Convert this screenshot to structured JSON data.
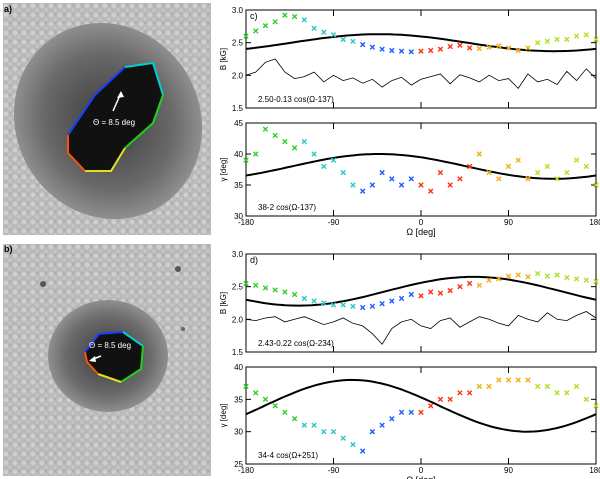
{
  "panels": {
    "a": {
      "label": "a)",
      "theta_label": "Θ = 8.5 deg"
    },
    "b": {
      "label": "b)",
      "theta_label": "Θ = 8.5 deg"
    }
  },
  "chart_data": [
    {
      "type": "scatter",
      "panel_label": "c)",
      "title": "",
      "xlabel": "Ω [deg]",
      "ylabel": "B [kG]",
      "x_ticks": [
        "-180",
        "-90",
        "0",
        "90",
        "180"
      ],
      "xlim": [
        -180,
        180
      ],
      "ylim": [
        1.5,
        3.0
      ],
      "y_ticks": [
        "1.5",
        "2.0",
        "2.5",
        "3.0"
      ],
      "fit_label": "2.50-0.13 cos(Ω-137)",
      "fit": {
        "offset": 2.5,
        "amplitude": 0.13,
        "phase": 137
      },
      "series": [
        {
          "name": "B",
          "x": [
            -180,
            -170,
            -160,
            -150,
            -140,
            -130,
            -120,
            -110,
            -100,
            -90,
            -80,
            -70,
            -60,
            -50,
            -40,
            -30,
            -20,
            -10,
            0,
            10,
            20,
            30,
            40,
            50,
            60,
            70,
            80,
            90,
            100,
            110,
            120,
            130,
            140,
            150,
            160,
            170,
            180
          ],
          "values": [
            2.6,
            2.68,
            2.76,
            2.82,
            2.92,
            2.9,
            2.85,
            2.72,
            2.66,
            2.62,
            2.55,
            2.52,
            2.47,
            2.43,
            2.4,
            2.38,
            2.37,
            2.36,
            2.37,
            2.38,
            2.4,
            2.44,
            2.46,
            2.42,
            2.41,
            2.43,
            2.45,
            2.42,
            2.38,
            2.42,
            2.5,
            2.52,
            2.55,
            2.55,
            2.6,
            2.62,
            2.55
          ]
        },
        {
          "name": "residual",
          "x": [
            -180,
            -170,
            -160,
            -150,
            -140,
            -130,
            -120,
            -110,
            -100,
            -90,
            -80,
            -70,
            -60,
            -50,
            -40,
            -30,
            -20,
            -10,
            0,
            10,
            20,
            30,
            40,
            50,
            60,
            70,
            80,
            90,
            100,
            110,
            120,
            130,
            140,
            150,
            160,
            170,
            180
          ],
          "values": [
            2.0,
            2.05,
            2.2,
            2.25,
            2.05,
            1.95,
            1.98,
            2.05,
            1.9,
            2.0,
            1.92,
            1.96,
            1.88,
            1.94,
            1.82,
            1.92,
            1.97,
            1.85,
            1.94,
            1.98,
            2.02,
            1.87,
            2.01,
            1.96,
            1.9,
            2.0,
            1.92,
            1.95,
            1.8,
            2.02,
            1.9,
            1.94,
            1.86,
            2.06,
            1.92,
            2.1,
            1.95
          ]
        }
      ]
    },
    {
      "type": "scatter",
      "panel_label": "",
      "xlabel": "Ω [deg]",
      "ylabel": "γ [deg]",
      "x_ticks": [
        "-180",
        "-90",
        "0",
        "90",
        "180"
      ],
      "xlim": [
        -180,
        180
      ],
      "ylim": [
        30,
        45
      ],
      "y_ticks": [
        "30",
        "35",
        "40",
        "45"
      ],
      "fit_label": "38-2 cos(Ω-137)",
      "fit": {
        "offset": 38,
        "amplitude": 2,
        "phase": 137
      },
      "series": [
        {
          "name": "gamma",
          "x": [
            -180,
            -170,
            -160,
            -150,
            -140,
            -130,
            -120,
            -110,
            -100,
            -90,
            -80,
            -70,
            -60,
            -50,
            -40,
            -30,
            -20,
            -10,
            0,
            10,
            20,
            30,
            40,
            50,
            60,
            70,
            80,
            90,
            100,
            110,
            120,
            130,
            140,
            150,
            160,
            170,
            180
          ],
          "values": [
            39,
            40,
            44,
            43,
            42,
            41,
            42,
            40,
            38,
            39,
            37,
            35,
            34,
            35,
            37,
            36,
            35,
            36,
            35,
            34,
            37,
            35,
            36,
            38,
            40,
            37,
            36,
            38,
            39,
            36,
            37,
            38,
            36,
            37,
            39,
            38,
            35
          ]
        }
      ]
    },
    {
      "type": "scatter",
      "panel_label": "d)",
      "xlabel": "Ω [deg]",
      "ylabel": "B [kG]",
      "x_ticks": [
        "-180",
        "-90",
        "0",
        "90",
        "180"
      ],
      "xlim": [
        -180,
        180
      ],
      "ylim": [
        1.5,
        3.0
      ],
      "y_ticks": [
        "1.5",
        "2.0",
        "2.5",
        "3.0"
      ],
      "fit_label": "2.43-0.22 cos(Ω-234)",
      "fit": {
        "offset": 2.43,
        "amplitude": 0.22,
        "phase": 234
      },
      "series": [
        {
          "name": "B",
          "x": [
            -180,
            -170,
            -160,
            -150,
            -140,
            -130,
            -120,
            -110,
            -100,
            -90,
            -80,
            -70,
            -60,
            -50,
            -40,
            -30,
            -20,
            -10,
            0,
            10,
            20,
            30,
            40,
            50,
            60,
            70,
            80,
            90,
            100,
            110,
            120,
            130,
            140,
            150,
            160,
            170,
            180
          ],
          "values": [
            2.55,
            2.52,
            2.48,
            2.45,
            2.42,
            2.38,
            2.32,
            2.28,
            2.25,
            2.22,
            2.22,
            2.2,
            2.18,
            2.2,
            2.24,
            2.28,
            2.32,
            2.38,
            2.36,
            2.42,
            2.4,
            2.44,
            2.5,
            2.55,
            2.52,
            2.6,
            2.62,
            2.66,
            2.68,
            2.65,
            2.7,
            2.66,
            2.68,
            2.64,
            2.62,
            2.6,
            2.58
          ]
        },
        {
          "name": "residual",
          "x": [
            -180,
            -170,
            -160,
            -150,
            -140,
            -130,
            -120,
            -110,
            -100,
            -90,
            -80,
            -70,
            -60,
            -50,
            -40,
            -30,
            -20,
            -10,
            0,
            10,
            20,
            30,
            40,
            50,
            60,
            70,
            80,
            90,
            100,
            110,
            120,
            130,
            140,
            150,
            160,
            170,
            180
          ],
          "values": [
            2.0,
            1.98,
            2.02,
            2.04,
            1.96,
            2.0,
            2.04,
            1.98,
            1.92,
            1.96,
            2.02,
            1.94,
            1.9,
            1.78,
            1.62,
            1.86,
            1.96,
            2.0,
            1.9,
            1.86,
            1.98,
            2.02,
            1.88,
            1.96,
            2.04,
            2.0,
            1.94,
            1.9,
            2.06,
            2.0,
            1.96,
            2.1,
            2.0,
            1.98,
            2.06,
            2.12,
            2.02
          ]
        }
      ]
    },
    {
      "type": "scatter",
      "panel_label": "",
      "xlabel": "Ω [deg]",
      "ylabel": "γ [deg]",
      "x_ticks": [
        "-180",
        "-90",
        "0",
        "90",
        "180"
      ],
      "xlim": [
        -180,
        180
      ],
      "ylim": [
        25,
        40
      ],
      "y_ticks": [
        "25",
        "30",
        "35",
        "40"
      ],
      "fit_label": "34-4 cos(Ω+251)",
      "fit": {
        "offset": 34,
        "amplitude": 4,
        "phase": -251
      },
      "series": [
        {
          "name": "gamma",
          "x": [
            -180,
            -170,
            -160,
            -150,
            -140,
            -130,
            -120,
            -110,
            -100,
            -90,
            -80,
            -70,
            -60,
            -50,
            -40,
            -30,
            -20,
            -10,
            0,
            10,
            20,
            30,
            40,
            50,
            60,
            70,
            80,
            90,
            100,
            110,
            120,
            130,
            140,
            150,
            160,
            170,
            180
          ],
          "values": [
            37,
            36,
            35,
            34,
            33,
            32,
            31,
            31,
            30,
            30,
            29,
            28,
            27,
            30,
            31,
            32,
            33,
            33,
            33,
            34,
            35,
            35,
            36,
            36,
            37,
            37,
            38,
            38,
            38,
            38,
            37,
            37,
            36,
            36,
            37,
            35,
            34
          ]
        }
      ]
    }
  ]
}
